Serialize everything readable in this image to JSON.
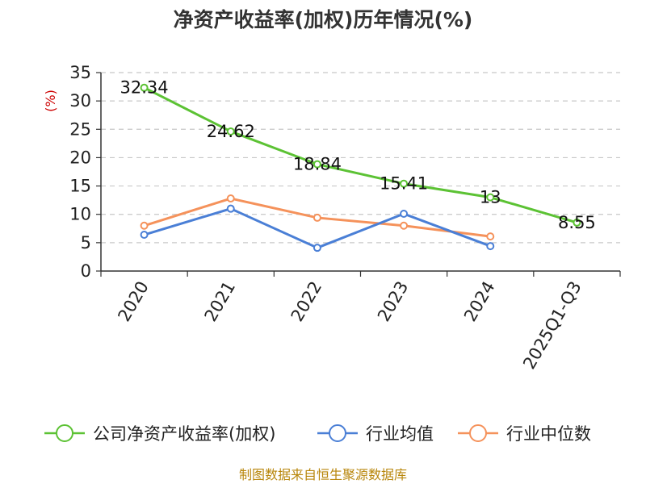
{
  "chart_data": {
    "type": "line",
    "title": "净资产收益率(加权)历年情况(%)",
    "ylabel": "(%)",
    "categories": [
      "2020",
      "2021",
      "2022",
      "2023",
      "2024",
      "2025Q1-Q3"
    ],
    "ylim": [
      0,
      35
    ],
    "yticks": [
      0,
      5,
      10,
      15,
      20,
      25,
      30,
      35
    ],
    "grid": true,
    "legend_position": "bottom",
    "series": [
      {
        "name": "公司净资产收益率(加权)",
        "color": "#5cc234",
        "values": [
          32.34,
          24.62,
          18.84,
          15.41,
          13,
          8.55
        ],
        "labels": [
          "32.34",
          "24.62",
          "18.84",
          "15.41",
          "13",
          "8.55"
        ]
      },
      {
        "name": "行业均值",
        "color": "#4a7fd6",
        "values": [
          6.4,
          11.0,
          4.1,
          10.1,
          4.4,
          null
        ]
      },
      {
        "name": "行业中位数",
        "color": "#f5925b",
        "values": [
          8.0,
          12.8,
          9.4,
          8.0,
          6.1,
          null
        ]
      }
    ]
  },
  "footer": {
    "source": "制图数据来自恒生聚源数据库"
  }
}
